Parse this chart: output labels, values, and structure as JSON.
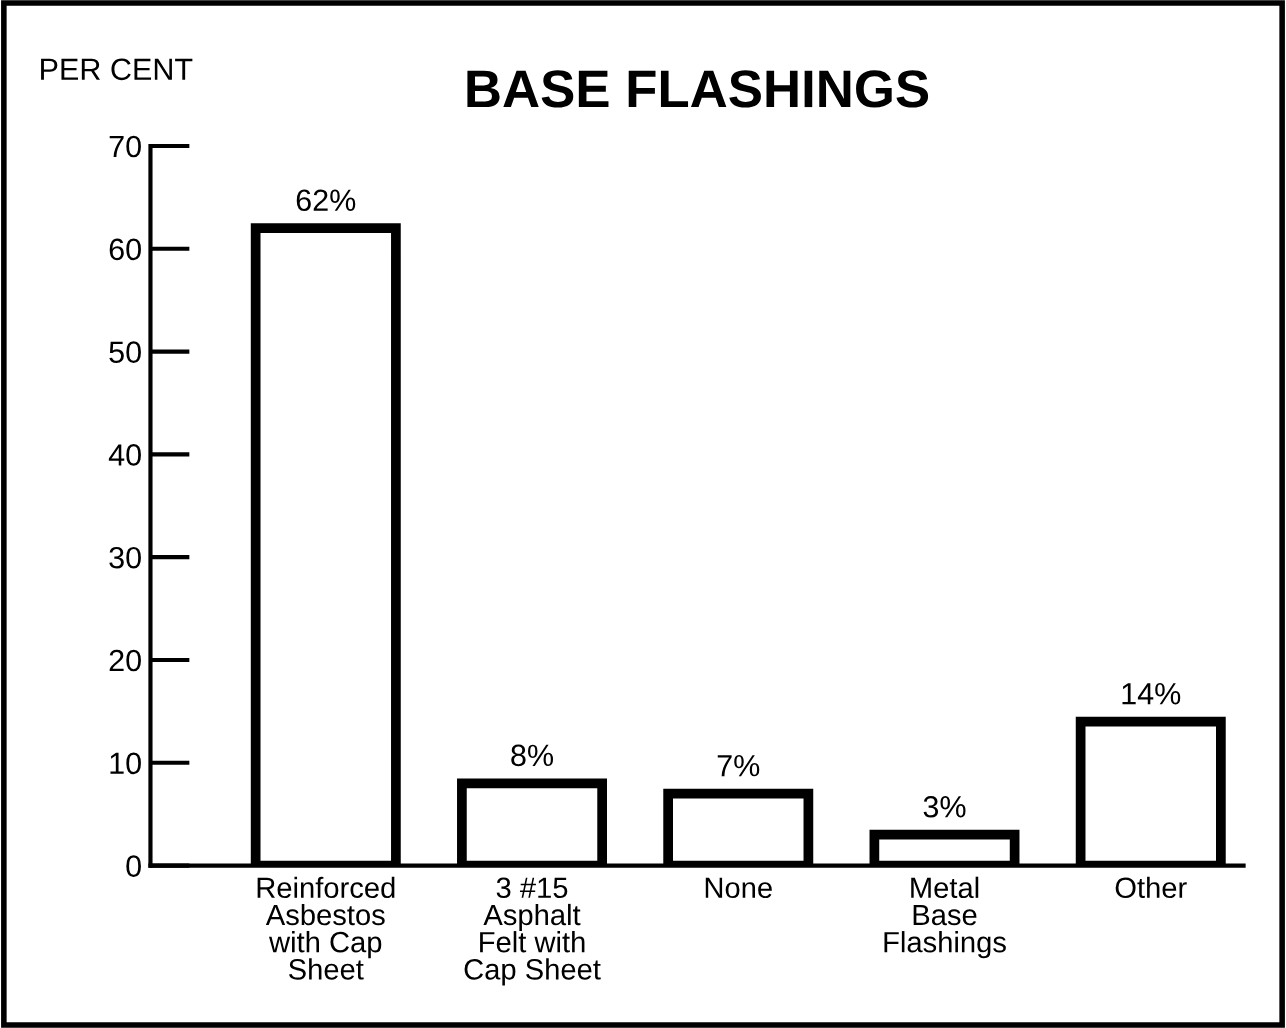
{
  "chart_data": {
    "type": "bar",
    "title": "BASE FLASHINGS",
    "ylabel": "PER CENT",
    "categories": [
      "Reinforced\nAsbestos\nwith Cap\nSheet",
      "3 #15\nAsphalt\nFelt with\nCap Sheet",
      "None",
      "Metal\nBase\nFlashings",
      "Other"
    ],
    "values": [
      62,
      8,
      7,
      3,
      14
    ],
    "value_labels": [
      "62%",
      "8%",
      "7%",
      "3%",
      "14%"
    ],
    "color": "#ffffff",
    "ylim": [
      0,
      70
    ],
    "yticks": [
      0,
      10,
      20,
      30,
      40,
      50,
      60,
      70
    ],
    "grid": false,
    "legend": false
  }
}
